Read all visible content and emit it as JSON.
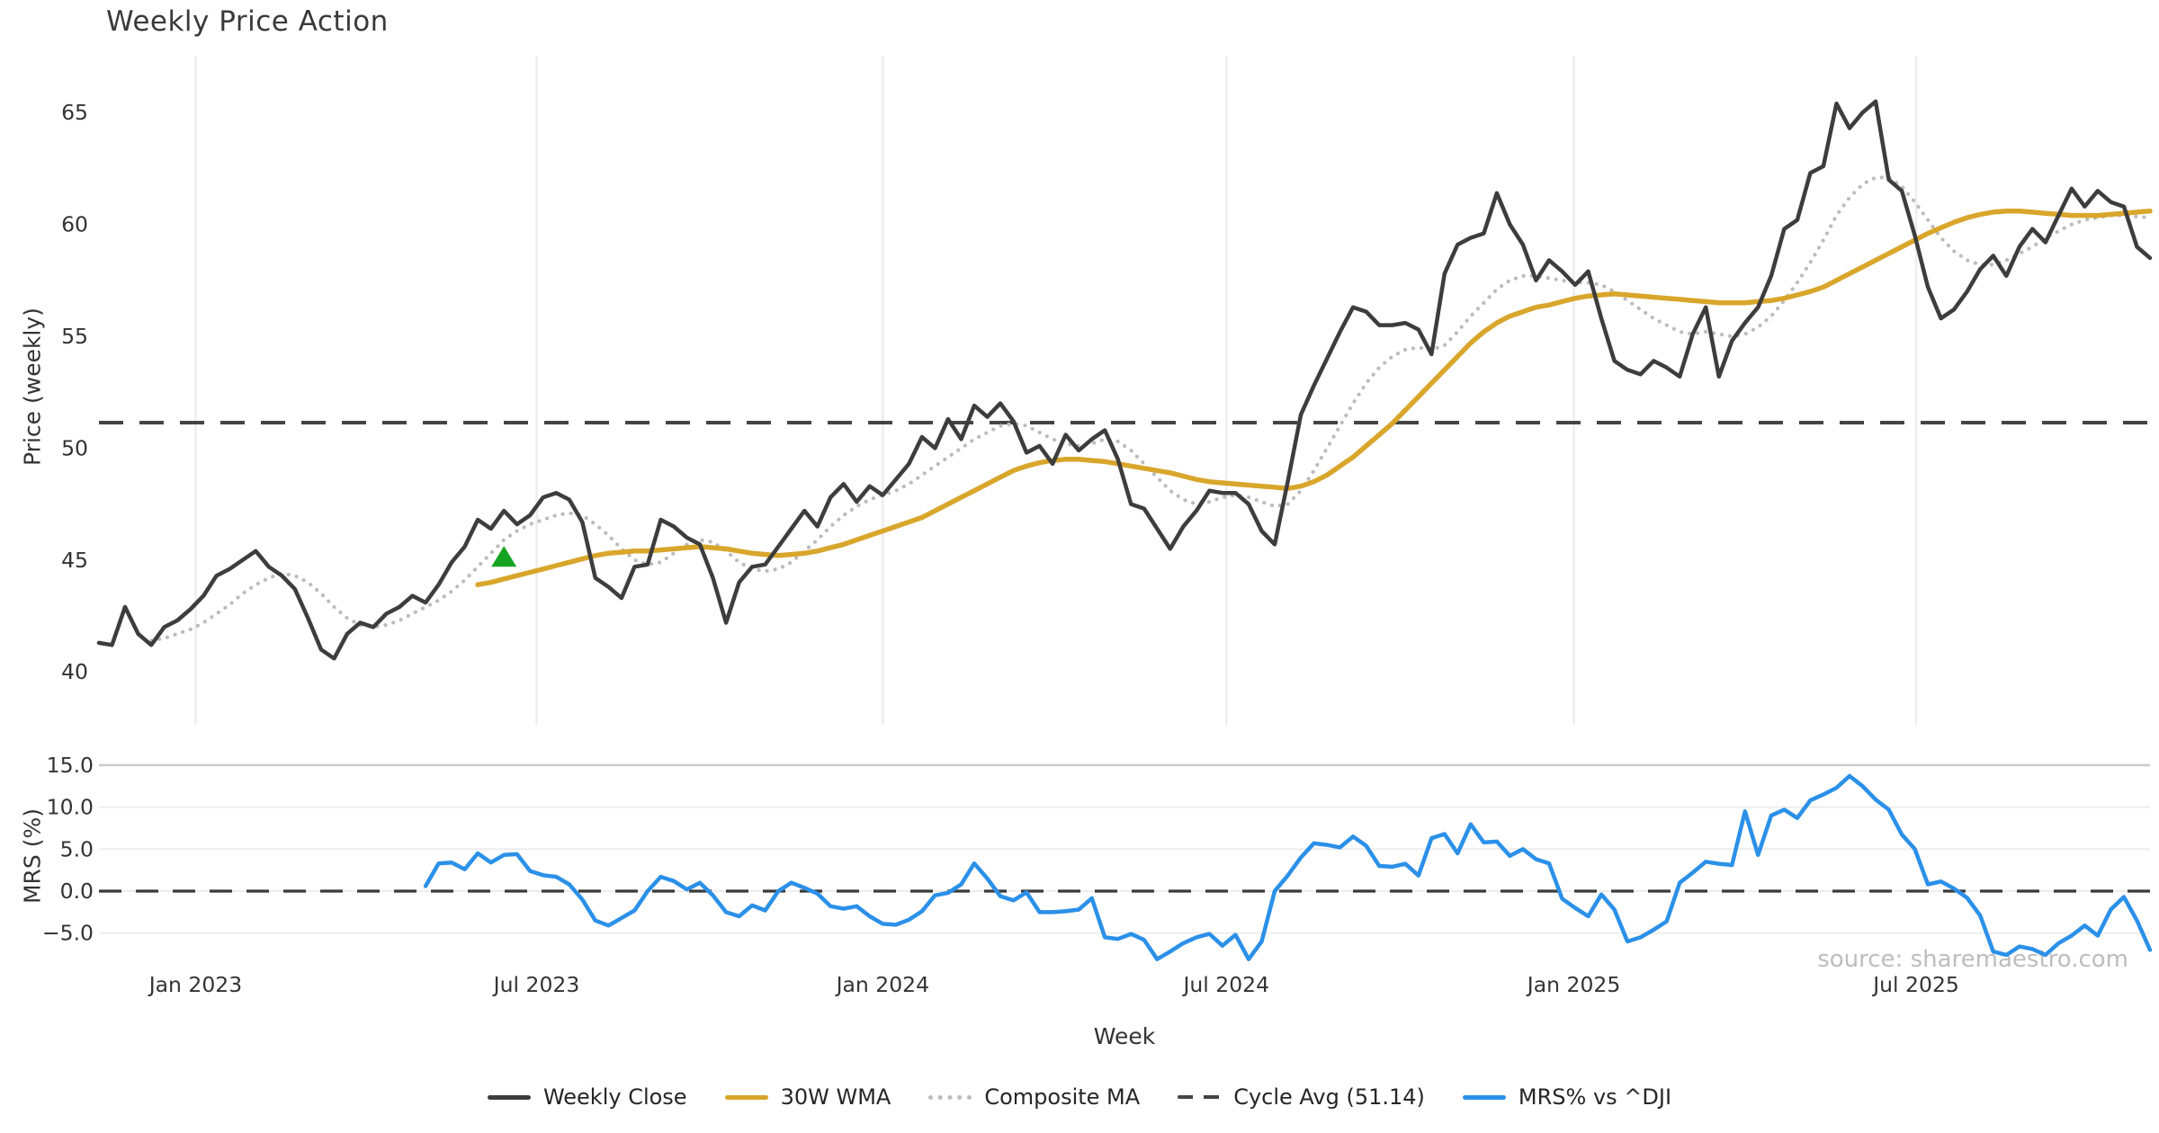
{
  "title": "Weekly Price Action",
  "source_text": "source: sharemaestro.com",
  "axes": {
    "x_label": "Week",
    "price_label": "Price (weekly)",
    "mrs_label": "MRS (%)",
    "price_ticks": [
      "65",
      "60",
      "55",
      "50",
      "45",
      "40"
    ],
    "price_tick_values": [
      65,
      60,
      55,
      50,
      45,
      40
    ],
    "mrs_ticks": [
      "15.0",
      "10.0",
      "5.0",
      "0.0",
      "−5.0"
    ],
    "mrs_tick_values": [
      15,
      10,
      5,
      0,
      -5
    ],
    "x_ticks": [
      {
        "label": "Jan 2023",
        "week": 7.4
      },
      {
        "label": "Jul 2023",
        "week": 33.5
      },
      {
        "label": "Jan 2024",
        "week": 60.0
      },
      {
        "label": "Jul 2024",
        "week": 86.3
      },
      {
        "label": "Jan 2025",
        "week": 112.9
      },
      {
        "label": "Jul 2025",
        "week": 139.1
      }
    ]
  },
  "legend": {
    "items": [
      {
        "label": "Weekly Close",
        "style": "solid",
        "color": "#3d3d3d"
      },
      {
        "label": "30W WMA",
        "style": "solid",
        "color": "#d9a62c"
      },
      {
        "label": "Composite MA",
        "style": "dotted",
        "color": "#bcbcbc"
      },
      {
        "label": "Cycle Avg (51.14)",
        "style": "dashed",
        "color": "#444444"
      },
      {
        "label": "MRS% vs ^DJI",
        "style": "solid",
        "color": "#2b90e8"
      }
    ]
  },
  "colors": {
    "close": "#3d3d3d",
    "wma": "#d9a62c",
    "composite": "#bcbcbc",
    "cycle": "#444444",
    "mrs": "#2b90e8",
    "marker_green": "#17a322",
    "grid": "#ededed",
    "grid_strong": "#cbcbcb",
    "text": "#333333",
    "muted": "#bdbdbd",
    "background": "#ffffff"
  },
  "chart_data": [
    {
      "type": "line",
      "panel": "price",
      "title": "Weekly Price Action",
      "xlabel": "Week",
      "ylabel": "Price (weekly)",
      "ylim": [
        39.5,
        66.5
      ],
      "x_unit": "week_index",
      "x_tick_weeks": [
        7.4,
        33.5,
        60.0,
        86.3,
        112.9,
        139.1
      ],
      "x_tick_labels": [
        "Jan 2023",
        "Jul 2023",
        "Jan 2024",
        "Jul 2024",
        "Jan 2025",
        "Jul 2025"
      ],
      "grid": "vertical",
      "cycle_avg": 51.14,
      "buy_marker": {
        "shape": "triangle-up",
        "week": 31,
        "value": 45.1
      },
      "series": [
        {
          "name": "Weekly Close",
          "style": "solid",
          "start_week": 0,
          "values": [
            41.3,
            41.2,
            42.9,
            41.7,
            41.2,
            42.0,
            42.3,
            42.8,
            43.4,
            44.3,
            44.6,
            45.0,
            45.4,
            44.7,
            44.3,
            43.7,
            42.4,
            41.0,
            40.6,
            41.7,
            42.2,
            42.0,
            42.6,
            42.9,
            43.4,
            43.1,
            43.9,
            44.9,
            45.6,
            46.8,
            46.4,
            47.2,
            46.6,
            47.0,
            47.8,
            48.0,
            47.7,
            46.7,
            44.2,
            43.8,
            43.3,
            44.7,
            44.8,
            46.8,
            46.5,
            46.0,
            45.7,
            44.2,
            42.2,
            44.0,
            44.7,
            44.8,
            45.6,
            46.4,
            47.2,
            46.5,
            47.8,
            48.4,
            47.6,
            48.3,
            47.9,
            48.6,
            49.3,
            50.5,
            50.0,
            51.3,
            50.4,
            51.9,
            51.4,
            52.0,
            51.2,
            49.8,
            50.1,
            49.3,
            50.6,
            49.9,
            50.4,
            50.8,
            49.5,
            47.5,
            47.3,
            46.4,
            45.5,
            46.5,
            47.2,
            48.1,
            48.0,
            48.0,
            47.5,
            46.3,
            45.7,
            48.5,
            51.5,
            52.8,
            54.0,
            55.2,
            56.3,
            56.1,
            55.5,
            55.5,
            55.6,
            55.3,
            54.2,
            57.8,
            59.1,
            59.4,
            59.6,
            61.4,
            60.0,
            59.1,
            57.5,
            58.4,
            57.9,
            57.3,
            57.9,
            55.8,
            53.9,
            53.5,
            53.3,
            53.9,
            53.6,
            53.2,
            55.1,
            56.3,
            53.2,
            54.8,
            55.6,
            56.3,
            57.7,
            59.8,
            60.2,
            62.3,
            62.6,
            65.4,
            64.3,
            65.0,
            65.5,
            62.0,
            61.5,
            59.5,
            57.2,
            55.8,
            56.2,
            57.0,
            58.0,
            58.6,
            57.7,
            59.0,
            59.8,
            59.2,
            60.4,
            61.6,
            60.8,
            61.5,
            61.0,
            60.8,
            59.0,
            58.5
          ]
        },
        {
          "name": "30W WMA",
          "style": "solid",
          "start_week": 29,
          "values": [
            43.9,
            44.0,
            44.15,
            44.3,
            44.45,
            44.6,
            44.75,
            44.9,
            45.05,
            45.2,
            45.3,
            45.35,
            45.4,
            45.4,
            45.45,
            45.5,
            45.55,
            45.6,
            45.55,
            45.5,
            45.4,
            45.3,
            45.25,
            45.2,
            45.25,
            45.3,
            45.4,
            45.55,
            45.7,
            45.9,
            46.1,
            46.3,
            46.5,
            46.7,
            46.9,
            47.2,
            47.5,
            47.8,
            48.1,
            48.4,
            48.7,
            49.0,
            49.2,
            49.35,
            49.45,
            49.5,
            49.5,
            49.45,
            49.4,
            49.3,
            49.2,
            49.1,
            49.0,
            48.9,
            48.75,
            48.6,
            48.5,
            48.45,
            48.4,
            48.35,
            48.3,
            48.25,
            48.2,
            48.3,
            48.5,
            48.8,
            49.2,
            49.6,
            50.1,
            50.6,
            51.1,
            51.7,
            52.3,
            52.9,
            53.5,
            54.1,
            54.7,
            55.2,
            55.6,
            55.9,
            56.1,
            56.3,
            56.4,
            56.55,
            56.7,
            56.8,
            56.85,
            56.9,
            56.85,
            56.8,
            56.75,
            56.7,
            56.65,
            56.6,
            56.55,
            56.5,
            56.5,
            56.5,
            56.55,
            56.6,
            56.7,
            56.85,
            57.0,
            57.2,
            57.5,
            57.8,
            58.1,
            58.4,
            58.7,
            59.0,
            59.3,
            59.6,
            59.85,
            60.1,
            60.3,
            60.45,
            60.55,
            60.6,
            60.6,
            60.55,
            60.5,
            60.45,
            60.4,
            60.4,
            60.4,
            60.45,
            60.5,
            60.55,
            60.6
          ]
        },
        {
          "name": "Composite MA",
          "style": "dotted",
          "start_week": 4,
          "values": [
            41.4,
            41.5,
            41.7,
            41.9,
            42.2,
            42.6,
            43.0,
            43.5,
            43.9,
            44.2,
            44.4,
            44.3,
            44.0,
            43.5,
            42.9,
            42.4,
            42.1,
            42.0,
            42.1,
            42.3,
            42.6,
            42.9,
            43.2,
            43.6,
            44.1,
            44.7,
            45.3,
            45.9,
            46.3,
            46.6,
            46.8,
            47.0,
            47.1,
            47.0,
            46.6,
            46.1,
            45.5,
            45.0,
            44.8,
            44.9,
            45.3,
            45.7,
            45.9,
            45.8,
            45.4,
            44.9,
            44.6,
            44.5,
            44.6,
            44.9,
            45.4,
            45.9,
            46.5,
            47.0,
            47.4,
            47.7,
            47.9,
            48.1,
            48.4,
            48.8,
            49.2,
            49.6,
            50.0,
            50.4,
            50.7,
            51.0,
            51.1,
            51.0,
            50.7,
            50.4,
            50.2,
            50.1,
            50.2,
            50.4,
            50.3,
            49.9,
            49.3,
            48.7,
            48.1,
            47.7,
            47.5,
            47.6,
            47.8,
            47.9,
            47.8,
            47.6,
            47.4,
            47.5,
            48.1,
            49.0,
            50.0,
            51.0,
            52.0,
            52.9,
            53.6,
            54.1,
            54.4,
            54.5,
            54.4,
            54.6,
            55.2,
            55.9,
            56.5,
            57.1,
            57.5,
            57.7,
            57.7,
            57.6,
            57.5,
            57.4,
            57.4,
            57.3,
            57.0,
            56.6,
            56.2,
            55.8,
            55.5,
            55.2,
            55.1,
            55.2,
            55.1,
            55.0,
            55.1,
            55.4,
            55.9,
            56.6,
            57.4,
            58.3,
            59.3,
            60.4,
            61.2,
            61.8,
            62.1,
            62.1,
            61.7,
            61.0,
            60.2,
            59.4,
            58.8,
            58.4,
            58.2,
            58.2,
            58.4,
            58.7,
            59.0,
            59.4,
            59.7,
            60.0,
            60.2,
            60.3,
            60.4,
            60.4,
            60.35,
            60.3
          ]
        }
      ]
    },
    {
      "type": "line",
      "panel": "mrs",
      "xlabel": "Week",
      "ylabel": "MRS (%)",
      "ylim": [
        -9,
        15.5
      ],
      "grid": "horizontal",
      "zero_line": 0.0,
      "series": [
        {
          "name": "MRS% vs ^DJI",
          "style": "solid",
          "start_week": 25,
          "values": [
            0.6,
            3.3,
            3.4,
            2.6,
            4.5,
            3.4,
            4.3,
            4.4,
            2.4,
            1.9,
            1.7,
            0.8,
            -1.0,
            -3.5,
            -4.1,
            -3.2,
            -2.3,
            0.0,
            1.7,
            1.2,
            0.2,
            1.0,
            -0.5,
            -2.5,
            -3.0,
            -1.7,
            -2.3,
            0.0,
            1.0,
            0.4,
            -0.3,
            -1.8,
            -2.1,
            -1.8,
            -3.0,
            -3.9,
            -4.0,
            -3.4,
            -2.4,
            -0.5,
            -0.2,
            0.8,
            3.3,
            1.5,
            -0.6,
            -1.1,
            -0.15,
            -2.5,
            -2.5,
            -2.4,
            -2.2,
            -0.85,
            -5.5,
            -5.7,
            -5.1,
            -5.8,
            -8.1,
            -7.2,
            -6.2,
            -5.5,
            -5.1,
            -6.5,
            -5.2,
            -8.1,
            -6.0,
            0.0,
            1.85,
            4.0,
            5.7,
            5.5,
            5.2,
            6.5,
            5.4,
            3.0,
            2.9,
            3.25,
            1.85,
            6.3,
            6.8,
            4.5,
            7.95,
            5.8,
            5.9,
            4.2,
            5.0,
            3.8,
            3.3,
            -0.9,
            -2.0,
            -3.0,
            -0.4,
            -2.2,
            -6.0,
            -5.5,
            -4.6,
            -3.6,
            1.0,
            2.2,
            3.5,
            3.25,
            3.1,
            9.5,
            4.3,
            9.0,
            9.7,
            8.7,
            10.8,
            11.5,
            12.3,
            13.7,
            12.5,
            10.9,
            9.7,
            6.75,
            5.0,
            0.8,
            1.15,
            0.3,
            -0.8,
            -2.9,
            -7.2,
            -7.6,
            -6.6,
            -6.9,
            -7.6,
            -6.2,
            -5.3,
            -4.1,
            -5.3,
            -2.2,
            -0.7,
            -3.5,
            -7.0
          ]
        }
      ]
    }
  ]
}
